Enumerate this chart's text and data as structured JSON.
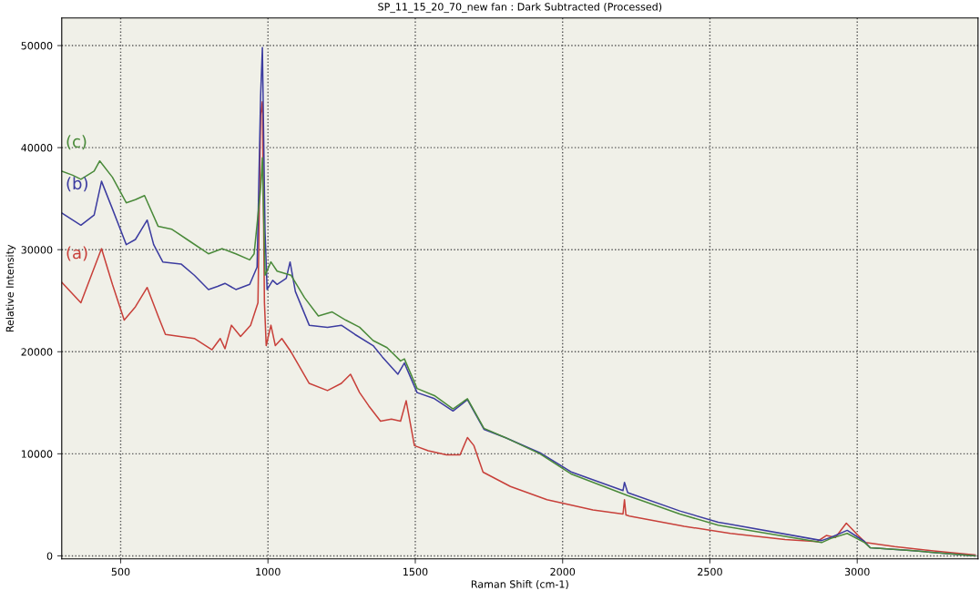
{
  "chart_data": {
    "type": "line",
    "title": "SP_11_15_20_70_new fan : Dark Subtracted (Processed)",
    "xlabel": "Raman Shift (cm-1)",
    "ylabel": "Relative Intensity",
    "xlim": [
      300,
      3410
    ],
    "xticks": [
      500,
      1000,
      1500,
      2000,
      2500,
      3000
    ],
    "ylim": [
      -300,
      52700
    ],
    "yticks": [
      0,
      10000,
      20000,
      30000,
      40000,
      50000
    ],
    "grid": true,
    "line_style": "solid",
    "marker": "none",
    "series": [
      {
        "name": "(a)",
        "color": "#c8403a",
        "x": [
          300,
          365,
          435,
          472,
          512,
          550,
          590,
          627,
          652,
          750,
          810,
          838,
          854,
          876,
          907,
          941,
          966,
          975,
          981,
          988,
          994,
          1010,
          1025,
          1047,
          1078,
          1140,
          1202,
          1249,
          1280,
          1311,
          1342,
          1382,
          1419,
          1450,
          1469,
          1497,
          1544,
          1606,
          1652,
          1677,
          1699,
          1730,
          1823,
          1947,
          2103,
          2205,
          2210,
          2215,
          2227,
          2413,
          2569,
          2755,
          2864,
          2895,
          2926,
          2963,
          3003,
          3028,
          3127,
          3252,
          3400
        ],
        "values": [
          26800,
          24800,
          30100,
          26600,
          23100,
          24400,
          26300,
          23500,
          21700,
          21300,
          20200,
          21300,
          20300,
          22600,
          21500,
          22600,
          24800,
          43200,
          44500,
          24800,
          20600,
          22600,
          20600,
          21300,
          20000,
          16900,
          16200,
          16900,
          17800,
          16000,
          14700,
          13200,
          13400,
          13200,
          15200,
          10800,
          10300,
          9900,
          9900,
          11600,
          10800,
          8200,
          6800,
          5500,
          4500,
          4100,
          5500,
          4000,
          3900,
          2900,
          2200,
          1600,
          1400,
          2000,
          1800,
          3200,
          2000,
          1300,
          900,
          500,
          100
        ]
      },
      {
        "name": "(b)",
        "color": "#3c3ca0",
        "x": [
          300,
          365,
          410,
          435,
          472,
          519,
          550,
          590,
          612,
          643,
          705,
          750,
          798,
          829,
          854,
          891,
          938,
          963,
          975,
          981,
          990,
          997,
          1016,
          1031,
          1062,
          1075,
          1093,
          1140,
          1202,
          1249,
          1295,
          1357,
          1388,
          1441,
          1463,
          1506,
          1565,
          1628,
          1677,
          1733,
          1805,
          1923,
          2031,
          2205,
          2210,
          2221,
          2398,
          2528,
          2569,
          2879,
          2910,
          2966,
          3025,
          3044,
          3190,
          3400
        ],
        "values": [
          33600,
          32400,
          33400,
          36700,
          34000,
          30500,
          31000,
          32900,
          30500,
          28800,
          28600,
          27500,
          26100,
          26400,
          26700,
          26100,
          26600,
          28300,
          45000,
          49800,
          31800,
          26100,
          27000,
          26600,
          27200,
          28800,
          25900,
          22600,
          22400,
          22600,
          21700,
          20600,
          19500,
          17800,
          18900,
          16000,
          15400,
          14200,
          15300,
          12400,
          11600,
          10100,
          8200,
          6400,
          7200,
          6200,
          4400,
          3300,
          3100,
          1500,
          1800,
          2500,
          1400,
          800,
          500,
          0
        ]
      },
      {
        "name": "(c)",
        "color": "#4a8a3a",
        "x": [
          300,
          337,
          365,
          410,
          429,
          472,
          519,
          550,
          581,
          627,
          674,
          736,
          798,
          845,
          891,
          938,
          953,
          975,
          981,
          990,
          1010,
          1031,
          1078,
          1124,
          1171,
          1218,
          1264,
          1311,
          1357,
          1404,
          1450,
          1463,
          1506,
          1565,
          1628,
          1677,
          1733,
          1805,
          1923,
          2031,
          2221,
          2398,
          2528,
          2569,
          2879,
          2910,
          2966,
          3025,
          3044,
          3190,
          3400
        ],
        "values": [
          37700,
          37300,
          36900,
          37700,
          38700,
          37100,
          34600,
          34900,
          35300,
          32300,
          32000,
          30800,
          29600,
          30100,
          29600,
          29000,
          29600,
          36000,
          39000,
          27500,
          28800,
          27900,
          27500,
          25300,
          23500,
          23900,
          23100,
          22400,
          21100,
          20400,
          19100,
          19300,
          16400,
          15700,
          14400,
          15400,
          12500,
          11600,
          10000,
          8000,
          5900,
          4100,
          3000,
          2800,
          1300,
          1700,
          2200,
          1300,
          800,
          500,
          0
        ]
      }
    ]
  }
}
